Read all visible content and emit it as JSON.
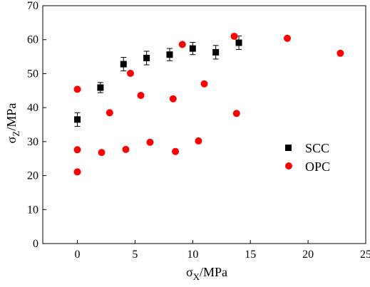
{
  "chart_data": {
    "type": "scatter",
    "title": "",
    "xlabel": "σX/MPa",
    "xlabel_parts": {
      "sym": "σ",
      "sub": "X",
      "unit": "/MPa"
    },
    "ylabel": "σZ/MPa",
    "ylabel_parts": {
      "sym": "σ",
      "sub": "Z",
      "unit": "/MPa"
    },
    "xlim": [
      -3,
      25
    ],
    "ylim": [
      0,
      70
    ],
    "xticks": [
      0,
      5,
      10,
      15,
      20,
      25
    ],
    "yticks": [
      0,
      10,
      20,
      30,
      40,
      50,
      60,
      70
    ],
    "grid": false,
    "legend_position": "right",
    "series": [
      {
        "name": "SCC",
        "marker": "square",
        "color": "#000000",
        "points": [
          {
            "x": 0,
            "y": 36.5,
            "err": 2.0
          },
          {
            "x": 2,
            "y": 45.9,
            "err": 1.5
          },
          {
            "x": 4,
            "y": 52.8,
            "err": 2.0
          },
          {
            "x": 6,
            "y": 54.6,
            "err": 2.0
          },
          {
            "x": 8,
            "y": 55.6,
            "err": 1.8
          },
          {
            "x": 10,
            "y": 57.4,
            "err": 1.8
          },
          {
            "x": 12,
            "y": 56.3,
            "err": 2.0
          },
          {
            "x": 14,
            "y": 59.1,
            "err": 2.0
          }
        ]
      },
      {
        "name": "OPC",
        "marker": "circle",
        "color": "#ff0000",
        "points": [
          {
            "x": 0,
            "y": 21.1
          },
          {
            "x": 0,
            "y": 27.6
          },
          {
            "x": 0,
            "y": 45.4
          },
          {
            "x": 2.1,
            "y": 26.8
          },
          {
            "x": 2.8,
            "y": 38.5
          },
          {
            "x": 4.2,
            "y": 27.7
          },
          {
            "x": 4.6,
            "y": 50.1
          },
          {
            "x": 5.5,
            "y": 43.6
          },
          {
            "x": 6.3,
            "y": 29.8
          },
          {
            "x": 8.3,
            "y": 42.6
          },
          {
            "x": 8.5,
            "y": 27.1
          },
          {
            "x": 9.1,
            "y": 58.6
          },
          {
            "x": 10.5,
            "y": 30.2
          },
          {
            "x": 11.0,
            "y": 47.0
          },
          {
            "x": 13.6,
            "y": 61.0
          },
          {
            "x": 13.8,
            "y": 38.3
          },
          {
            "x": 18.2,
            "y": 60.4
          },
          {
            "x": 22.8,
            "y": 56.0
          }
        ]
      }
    ]
  }
}
